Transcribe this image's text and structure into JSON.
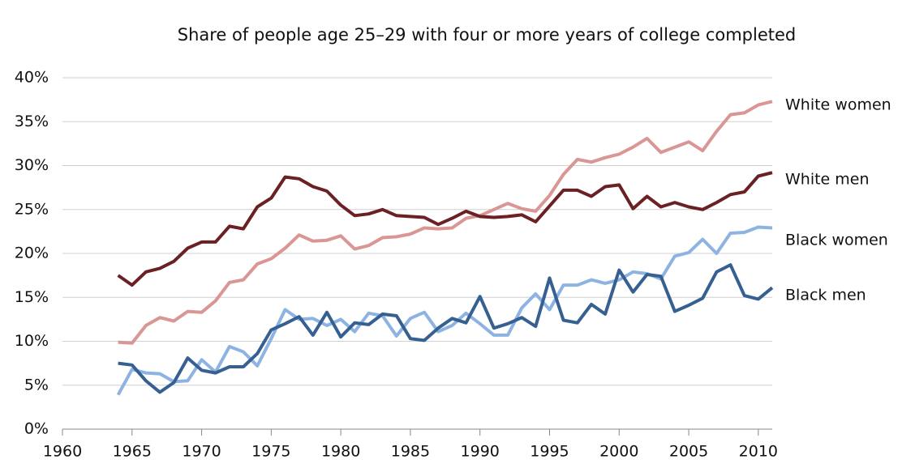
{
  "chart_data": {
    "type": "line",
    "title": "Share of people age 25–29 with four or more years of college completed",
    "x": [
      1964,
      1965,
      1966,
      1967,
      1968,
      1969,
      1970,
      1971,
      1972,
      1973,
      1974,
      1975,
      1976,
      1977,
      1978,
      1979,
      1980,
      1981,
      1982,
      1983,
      1984,
      1985,
      1986,
      1987,
      1988,
      1989,
      1990,
      1991,
      1992,
      1993,
      1994,
      1995,
      1996,
      1997,
      1998,
      1999,
      2000,
      2001,
      2002,
      2003,
      2004,
      2005,
      2006,
      2007,
      2008,
      2009,
      2010,
      2011
    ],
    "series": [
      {
        "name": "White women",
        "color": "#d99694",
        "values": [
          9.9,
          9.8,
          11.8,
          12.7,
          12.3,
          13.4,
          13.3,
          14.6,
          16.7,
          17.0,
          18.8,
          19.4,
          20.6,
          22.1,
          21.4,
          21.5,
          22.0,
          20.5,
          20.9,
          21.8,
          21.9,
          22.2,
          22.9,
          22.8,
          22.9,
          24.0,
          24.3,
          25.0,
          25.7,
          25.1,
          24.8,
          26.6,
          29.0,
          30.7,
          30.4,
          30.9,
          31.3,
          32.1,
          33.1,
          31.5,
          32.1,
          32.7,
          31.7,
          33.9,
          35.8,
          36.0,
          36.9,
          37.3
        ]
      },
      {
        "name": "White men",
        "color": "#6b2024",
        "values": [
          17.5,
          16.4,
          17.9,
          18.3,
          19.1,
          20.6,
          21.3,
          21.3,
          23.1,
          22.8,
          25.3,
          26.3,
          28.7,
          28.5,
          27.6,
          27.1,
          25.5,
          24.3,
          24.5,
          25.0,
          24.3,
          24.2,
          24.1,
          23.3,
          24.0,
          24.8,
          24.2,
          24.1,
          24.2,
          24.4,
          23.6,
          25.4,
          27.2,
          27.2,
          26.5,
          27.6,
          27.8,
          25.1,
          26.5,
          25.3,
          25.8,
          25.3,
          25.0,
          25.8,
          26.7,
          27.0,
          28.8,
          29.2
        ]
      },
      {
        "name": "Black women",
        "color": "#8db3e2",
        "values": [
          3.9,
          6.8,
          6.4,
          6.3,
          5.4,
          5.5,
          7.9,
          6.5,
          9.4,
          8.8,
          7.2,
          10.3,
          13.6,
          12.5,
          12.6,
          11.8,
          12.5,
          11.1,
          13.2,
          12.9,
          10.6,
          12.6,
          13.3,
          11.1,
          11.8,
          13.2,
          12.0,
          10.7,
          10.7,
          13.8,
          15.4,
          13.6,
          16.4,
          16.4,
          17.0,
          16.6,
          17.0,
          17.9,
          17.7,
          17.1,
          19.7,
          20.1,
          21.6,
          20.0,
          22.3,
          22.4,
          23.0,
          22.9
        ]
      },
      {
        "name": "Black men",
        "color": "#366092",
        "values": [
          7.5,
          7.3,
          5.5,
          4.2,
          5.3,
          8.1,
          6.7,
          6.4,
          7.1,
          7.1,
          8.6,
          11.3,
          12.0,
          12.8,
          10.7,
          13.3,
          10.5,
          12.1,
          11.9,
          13.1,
          12.9,
          10.3,
          10.1,
          11.5,
          12.6,
          12.1,
          15.1,
          11.5,
          12.0,
          12.7,
          11.7,
          17.2,
          12.4,
          12.1,
          14.2,
          13.1,
          18.1,
          15.6,
          17.6,
          17.4,
          13.4,
          14.1,
          14.9,
          17.9,
          18.7,
          15.2,
          14.8,
          16.1
        ]
      }
    ],
    "xlim": [
      1960,
      2011
    ],
    "xticks": [
      1960,
      1965,
      1970,
      1975,
      1980,
      1985,
      1990,
      1995,
      2000,
      2005,
      2010
    ],
    "ylim": [
      0,
      40
    ],
    "yticks": [
      {
        "value": 0,
        "label": "0%"
      },
      {
        "value": 5,
        "label": "5%"
      },
      {
        "value": 10,
        "label": "10%"
      },
      {
        "value": 15,
        "label": "15%"
      },
      {
        "value": 20,
        "label": "20%"
      },
      {
        "value": 25,
        "label": "25%"
      },
      {
        "value": 30,
        "label": "30%"
      },
      {
        "value": 35,
        "label": "35%"
      },
      {
        "value": 40,
        "label": "40%"
      }
    ],
    "grid": true
  }
}
